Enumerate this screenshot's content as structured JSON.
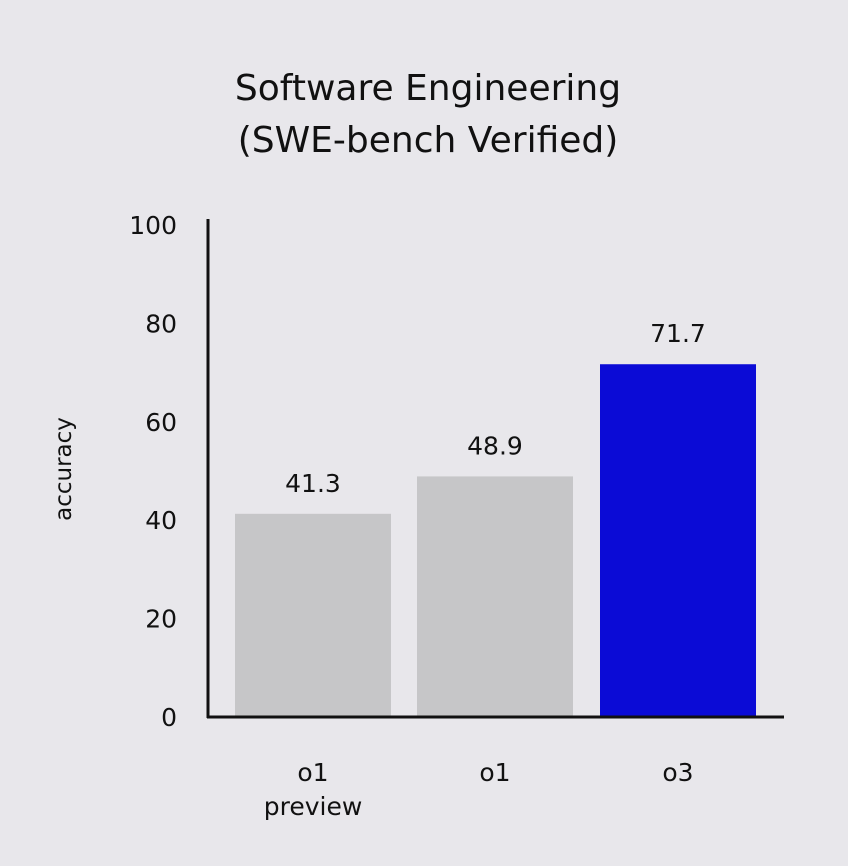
{
  "chart_data": {
    "type": "bar",
    "title": [
      "Software Engineering",
      "(SWE-bench Verified)"
    ],
    "xlabel": "",
    "ylabel": "accuracy",
    "ylim": [
      0,
      100
    ],
    "yticks": [
      0,
      20,
      40,
      60,
      80,
      100
    ],
    "grid": false,
    "categories": [
      [
        "o1",
        "preview"
      ],
      [
        "o1"
      ],
      [
        "o3"
      ]
    ],
    "values": [
      41.3,
      48.9,
      71.7
    ],
    "value_labels": [
      "41.3",
      "48.9",
      "71.7"
    ],
    "colors": [
      "#c6c6c8",
      "#c6c6c8",
      "#0b0bd6"
    ]
  }
}
